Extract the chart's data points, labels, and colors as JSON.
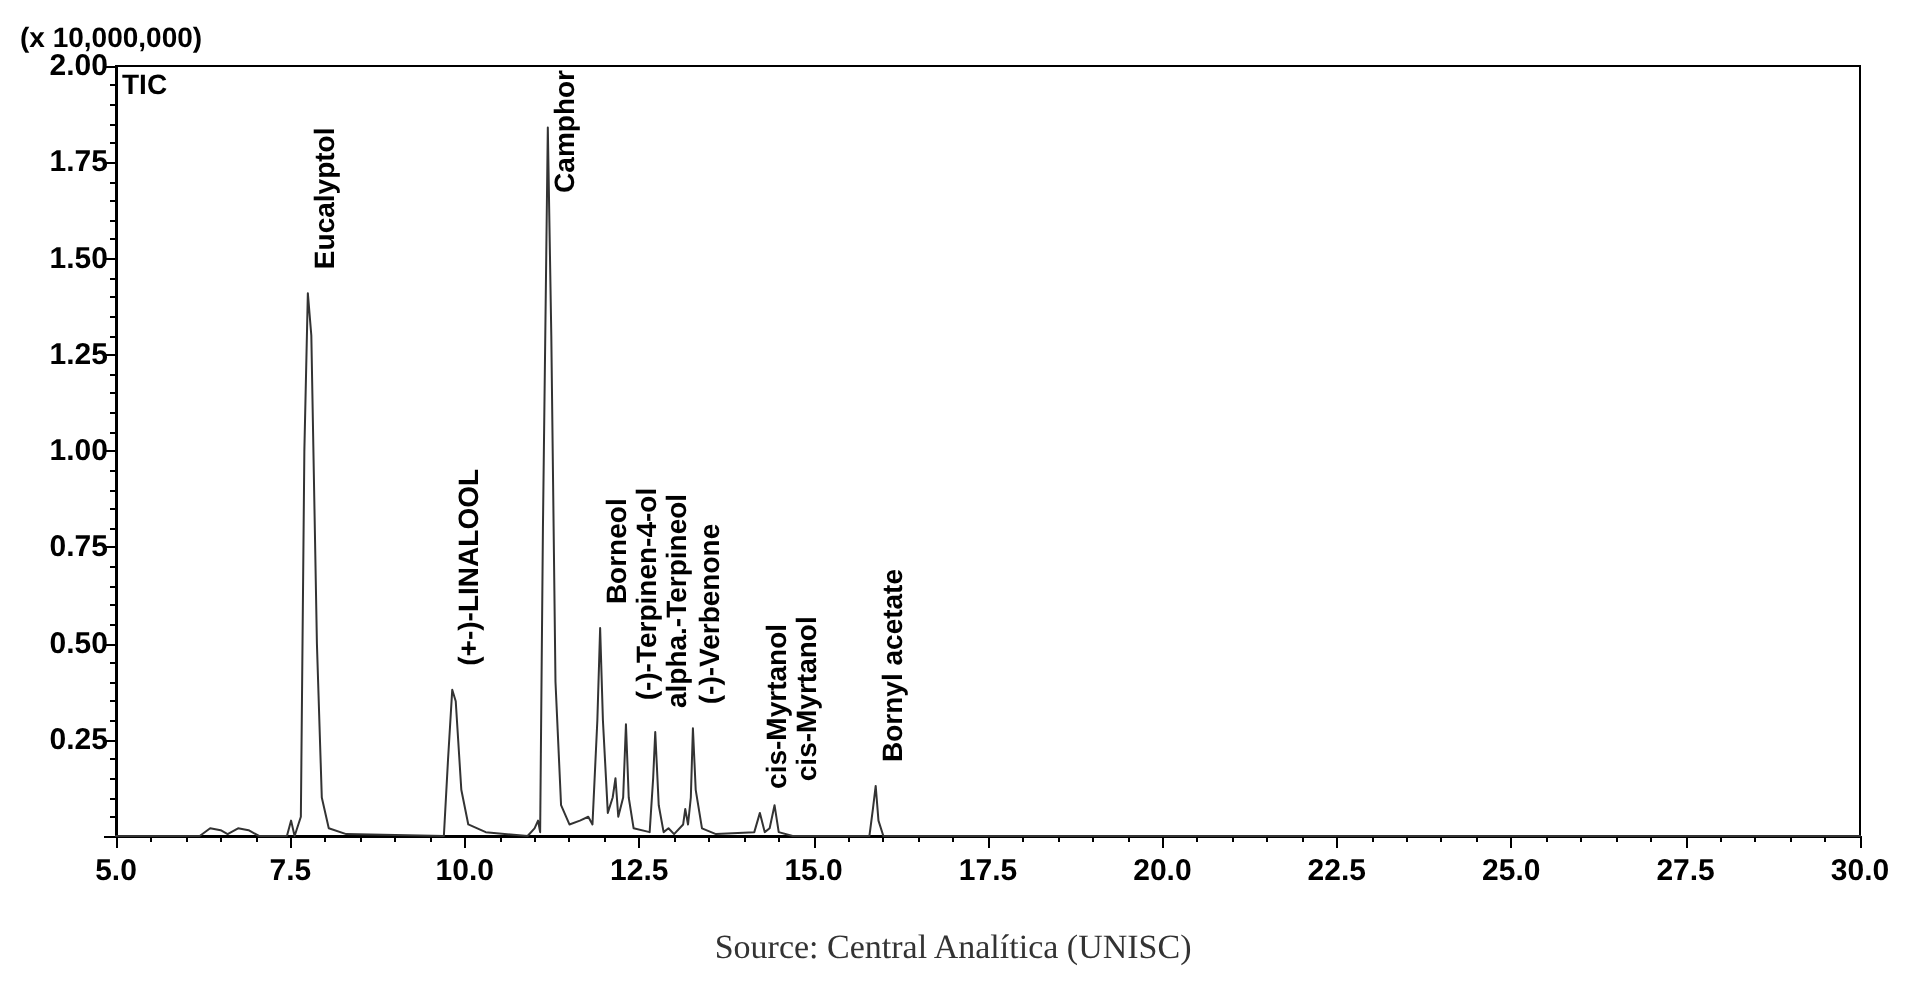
{
  "chart_data": {
    "type": "line",
    "ylabel": "(x 10,000,000)",
    "annotations": [
      "TIC",
      "Source: Central Analítica (UNISC)",
      {
        "text": "Eucalyptol",
        "x": 7.75,
        "y": 1.41
      },
      {
        "text": "(+-)-LINALOOL",
        "x": 9.82,
        "y": 0.38
      },
      {
        "text": "Camphor",
        "x": 11.19,
        "y": 1.84
      },
      {
        "text": "Borneol",
        "x": 11.94,
        "y": 0.54
      },
      {
        "text": "(-)-Terpinen-4-ol",
        "x": 12.31,
        "y": 0.29
      },
      {
        "text": "alpha.-Terpineol",
        "x": 12.73,
        "y": 0.27
      },
      {
        "text": "(-)-Verbenone",
        "x": 13.27,
        "y": 0.28
      },
      {
        "text": "cis-Myrtanol",
        "x": 14.23,
        "y": 0.06
      },
      {
        "text": "cis-Myrtanol",
        "x": 14.44,
        "y": 0.08
      },
      {
        "text": "Bornyl acetate",
        "x": 15.89,
        "y": 0.13
      }
    ],
    "x": [
      5.0,
      6.2,
      6.35,
      6.5,
      6.6,
      6.75,
      6.9,
      7.05,
      7.45,
      7.51,
      7.56,
      7.65,
      7.7,
      7.75,
      7.8,
      7.88,
      7.95,
      8.05,
      8.3,
      9.7,
      9.76,
      9.82,
      9.87,
      9.95,
      10.05,
      10.3,
      10.9,
      11.0,
      11.05,
      11.08,
      11.12,
      11.19,
      11.24,
      11.3,
      11.38,
      11.5,
      11.65,
      11.77,
      11.83,
      11.9,
      11.94,
      11.98,
      12.05,
      12.12,
      12.16,
      12.2,
      12.27,
      12.31,
      12.35,
      12.42,
      12.65,
      12.7,
      12.73,
      12.78,
      12.85,
      12.92,
      13.0,
      13.13,
      13.16,
      13.2,
      13.24,
      13.27,
      13.31,
      13.4,
      13.6,
      14.15,
      14.23,
      14.3,
      14.37,
      14.44,
      14.5,
      14.7,
      15.8,
      15.85,
      15.89,
      15.93,
      16.0,
      30.0
    ],
    "series": [
      {
        "color": "#333333",
        "values": [
          0,
          0,
          0.02,
          0.015,
          0.005,
          0.02,
          0.015,
          0,
          0,
          0.04,
          0,
          0.05,
          1.0,
          1.41,
          1.3,
          0.5,
          0.1,
          0.02,
          0.005,
          0,
          0.2,
          0.38,
          0.35,
          0.12,
          0.03,
          0.01,
          0,
          0.02,
          0.04,
          0.01,
          0.8,
          1.84,
          1.3,
          0.4,
          0.08,
          0.03,
          0.04,
          0.05,
          0.03,
          0.3,
          0.54,
          0.3,
          0.06,
          0.1,
          0.15,
          0.05,
          0.1,
          0.29,
          0.1,
          0.02,
          0.01,
          0.15,
          0.27,
          0.08,
          0.01,
          0.02,
          0.005,
          0.03,
          0.07,
          0.03,
          0.1,
          0.28,
          0.12,
          0.02,
          0.005,
          0.01,
          0.06,
          0.01,
          0.02,
          0.08,
          0.01,
          0,
          0,
          0.07,
          0.13,
          0.04,
          0,
          0
        ]
      }
    ],
    "xlim": [
      5,
      30
    ],
    "xticks": [
      {
        "value": 5,
        "label": "5.0"
      },
      {
        "value": 7.5,
        "label": "7.5"
      },
      {
        "value": 10,
        "label": "10.0"
      },
      {
        "value": 12.5,
        "label": "12.5"
      },
      {
        "value": 15,
        "label": "15.0"
      },
      {
        "value": 17.5,
        "label": "17.5"
      },
      {
        "value": 20,
        "label": "20.0"
      },
      {
        "value": 22.5,
        "label": "22.5"
      },
      {
        "value": 25,
        "label": "25.0"
      },
      {
        "value": 27.5,
        "label": "27.5"
      },
      {
        "value": 30,
        "label": "30.0"
      }
    ],
    "ylim": [
      0,
      2
    ],
    "yticks": [
      {
        "value": 0,
        "label": null
      },
      0.25,
      {
        "value": 0.5,
        "label": "0.50"
      },
      0.75,
      {
        "value": 1,
        "label": "1.00"
      },
      1.25,
      {
        "value": 1.5,
        "label": "1.50"
      },
      1.75,
      {
        "value": 2,
        "label": "2.00"
      }
    ],
    "grid": false,
    "marker": "none",
    "line_style": "solid"
  }
}
